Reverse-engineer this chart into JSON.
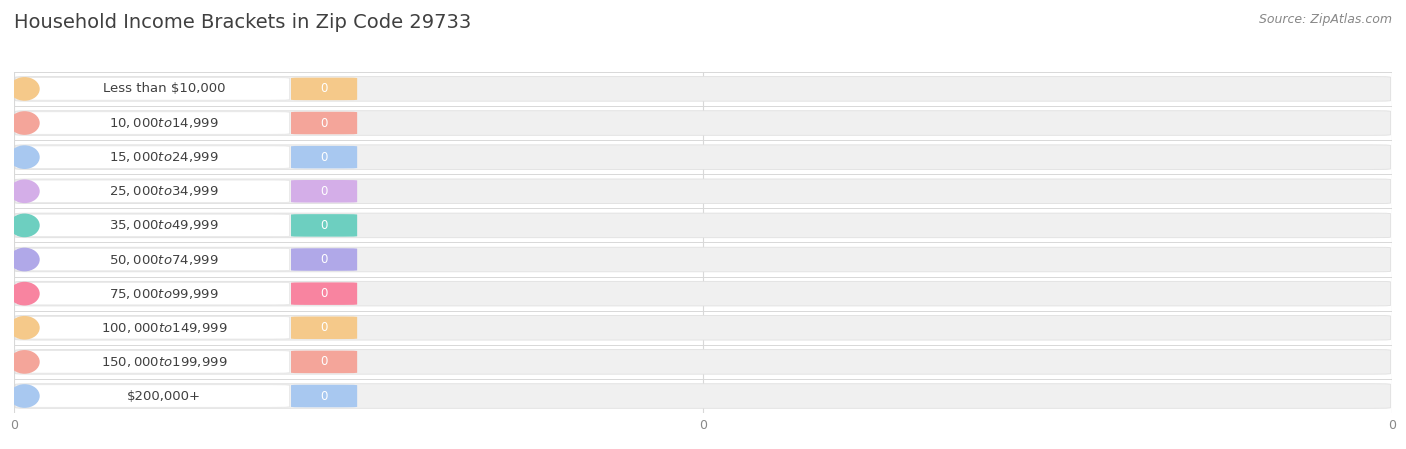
{
  "title": "Household Income Brackets in Zip Code 29733",
  "source": "Source: ZipAtlas.com",
  "categories": [
    "Less than $10,000",
    "$10,000 to $14,999",
    "$15,000 to $24,999",
    "$25,000 to $34,999",
    "$35,000 to $49,999",
    "$50,000 to $74,999",
    "$75,000 to $99,999",
    "$100,000 to $149,999",
    "$150,000 to $199,999",
    "$200,000+"
  ],
  "values": [
    0,
    0,
    0,
    0,
    0,
    0,
    0,
    0,
    0,
    0
  ],
  "bar_colors": [
    "#f5c98a",
    "#f4a59a",
    "#a8c8f0",
    "#d4aee8",
    "#6dcfc0",
    "#b0a8e8",
    "#f884a0",
    "#f5c98a",
    "#f4a59a",
    "#a8c8f0"
  ],
  "bg_bar_color": "#f0f0f0",
  "bg_bar_edge_color": "#e0e0e0",
  "white_pill_color": "#ffffff",
  "white_pill_edge_color": "#e4e4e4",
  "background_color": "#ffffff",
  "title_fontsize": 14,
  "label_fontsize": 9.5,
  "value_fontsize": 8.5,
  "source_fontsize": 9,
  "grid_color": "#d8d8d8",
  "title_color": "#404040",
  "label_color": "#404040",
  "value_color": "#ffffff",
  "source_color": "#888888",
  "xtick_color": "#888888",
  "xtick_fontsize": 9
}
